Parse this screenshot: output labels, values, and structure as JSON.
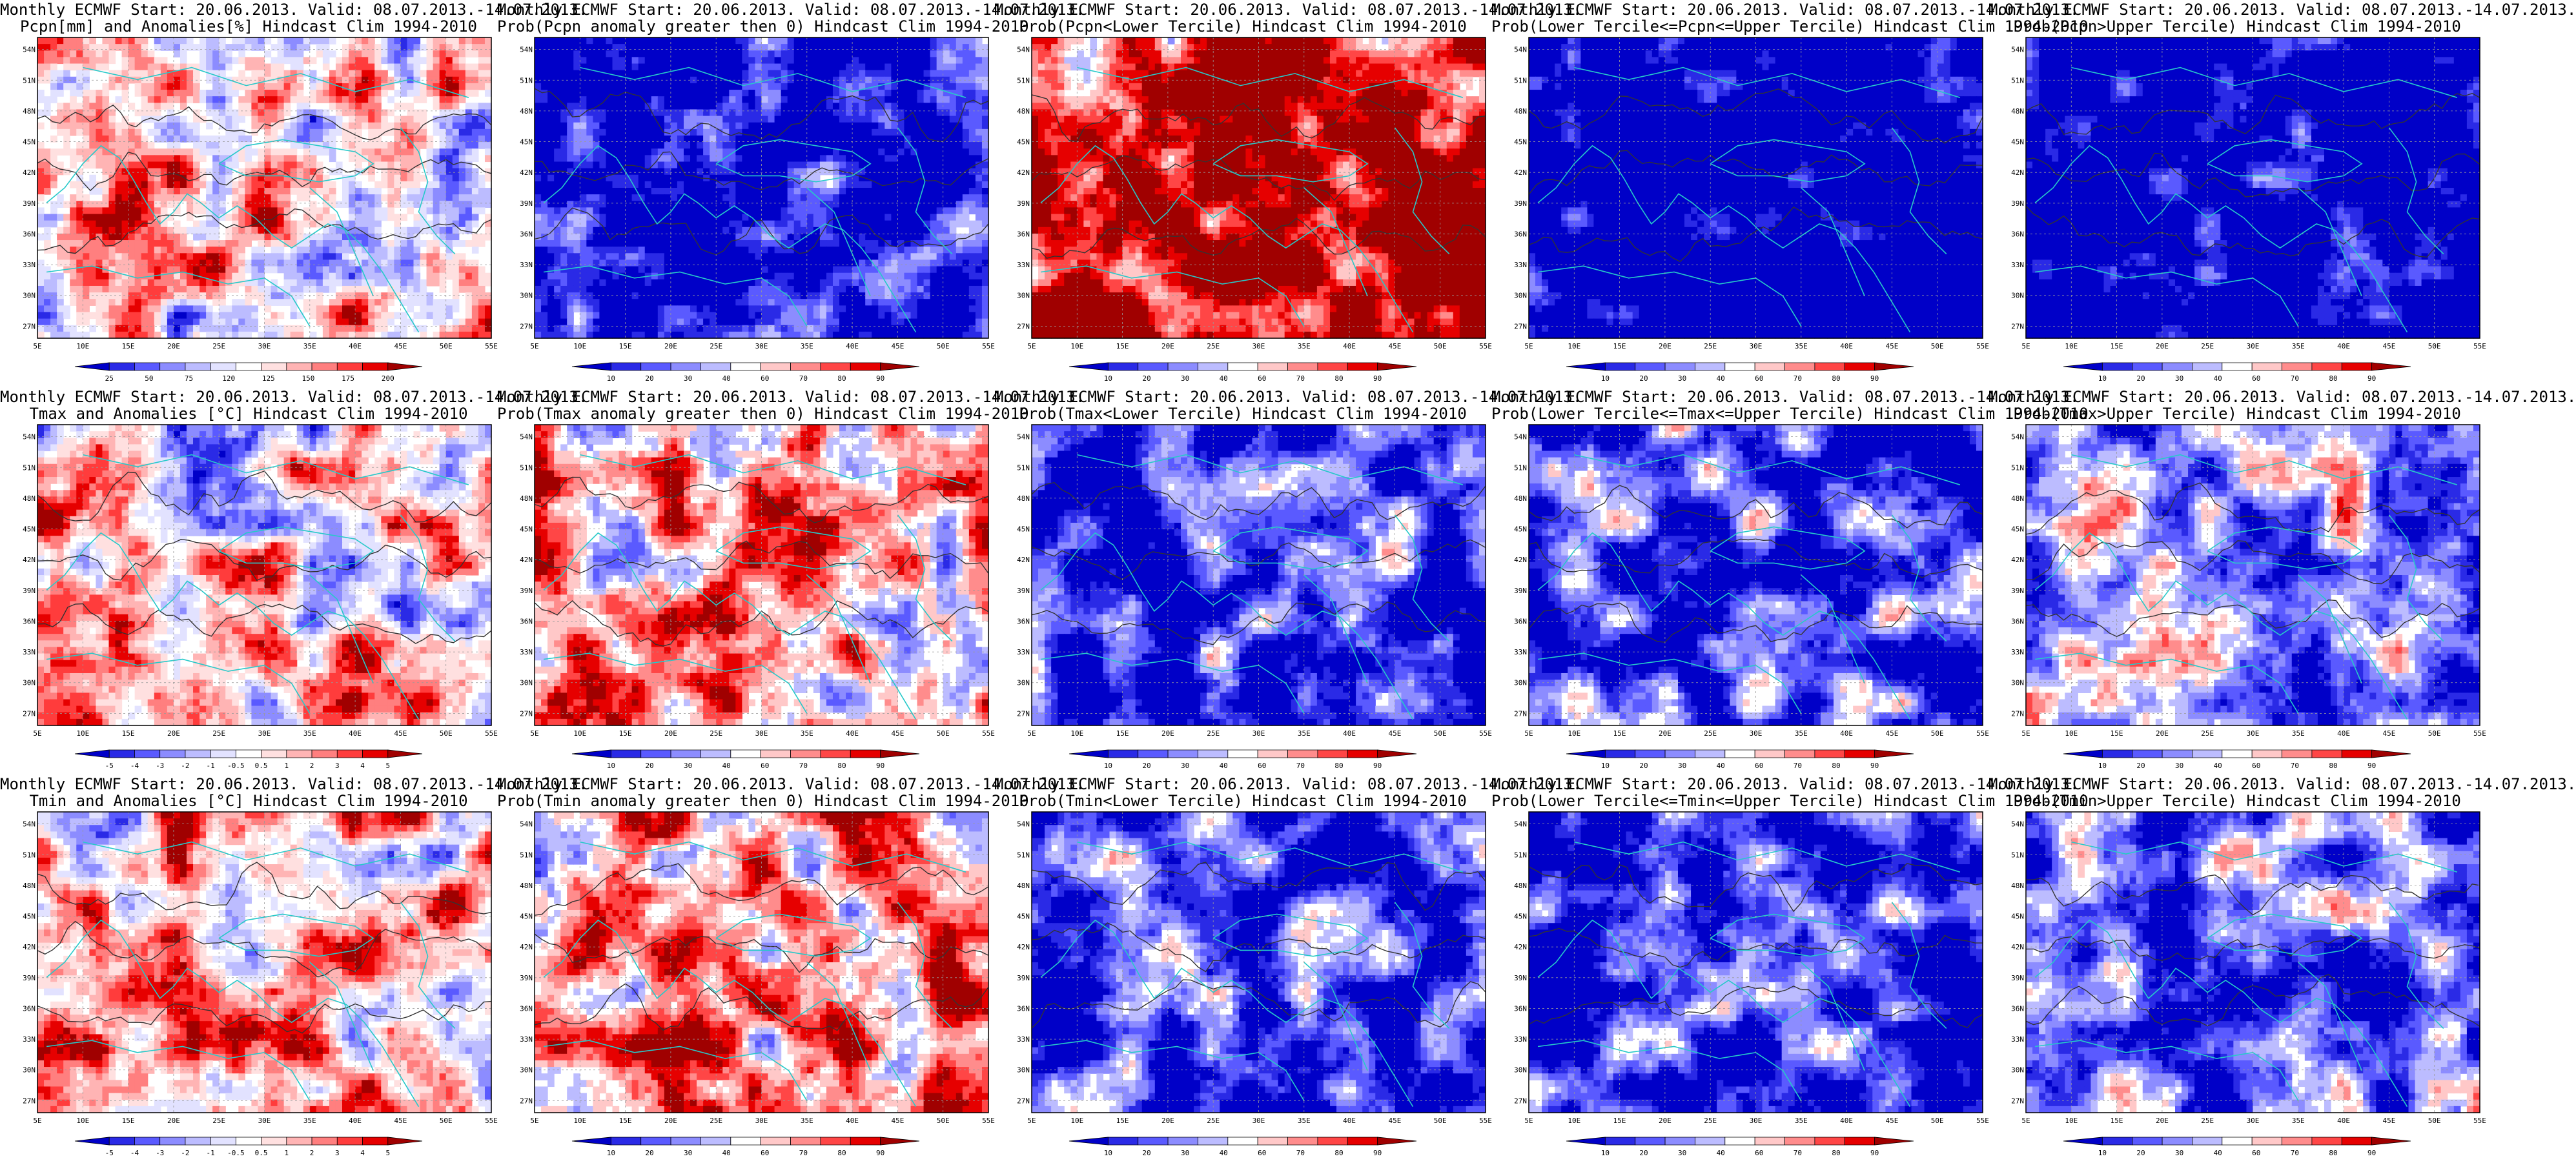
{
  "page": {
    "background": "#ffffff"
  },
  "palette": {
    "anomaly_scale": [
      "#0000c8",
      "#2a2ae6",
      "#5a5aff",
      "#8c8cff",
      "#bcbcff",
      "#e2e2ff",
      "#ffffff",
      "#ffe0e0",
      "#ffb4b4",
      "#ff7f7f",
      "#ff3c3c",
      "#e60000",
      "#a00000"
    ],
    "prob_scale": [
      "#0000c8",
      "#2a2ae6",
      "#5a5aff",
      "#8c8cff",
      "#bcbcff",
      "#ffffff",
      "#ffc8c8",
      "#ff8c8c",
      "#ff4646",
      "#e60000",
      "#a00000"
    ],
    "coast_color": "#27c9c9",
    "contour_color": "#333333"
  },
  "axes": {
    "lat_labels": [
      "54N",
      "51N",
      "48N",
      "45N",
      "42N",
      "39N",
      "36N",
      "33N",
      "30N",
      "27N"
    ],
    "lon_labels": [
      "5E",
      "10E",
      "15E",
      "20E",
      "25E",
      "30E",
      "35E",
      "40E",
      "45E",
      "50E",
      "55E"
    ]
  },
  "colorbars": {
    "pcpn_anom": [
      "25",
      "50",
      "75",
      "120",
      "125",
      "150",
      "175",
      "200"
    ],
    "temp_anom": [
      "-5",
      "-4",
      "-3",
      "-2",
      "-1",
      "-0.5",
      "0.5",
      "1",
      "2",
      "3",
      "4",
      "5"
    ],
    "prob": [
      "10",
      "20",
      "30",
      "40",
      "60",
      "70",
      "80",
      "90"
    ]
  },
  "panels": [
    {
      "line1": "Monthly ECMWF Start: 20.06.2013. Valid: 08.07.2013.-14.07.2013.",
      "line2": "Pcpn[mm] and Anomalies[%] Hindcast Clim 1994-2010",
      "bar": "pcpn_anom",
      "seed": 11,
      "bias": 0.05,
      "scale": "anomaly_scale"
    },
    {
      "line1": "Monthly ECMWF Start: 20.06.2013. Valid: 08.07.2013.-14.07.2013.",
      "line2": "Prob(Pcpn anomaly greater then 0) Hindcast Clim 1994-2010",
      "bar": "prob",
      "seed": 12,
      "bias": -0.35,
      "scale": "prob_scale"
    },
    {
      "line1": "Monthly ECMWF Start: 20.06.2013. Valid: 08.07.2013.-14.07.2013.",
      "line2": "Prob(Pcpn<Lower Tercile) Hindcast Clim 1994-2010",
      "bar": "prob",
      "seed": 13,
      "bias": 0.35,
      "scale": "prob_scale"
    },
    {
      "line1": "Monthly ECMWF Start: 20.06.2013. Valid: 08.07.2013.-14.07.2013.",
      "line2": "Prob(Lower Tercile<=Pcpn<=Upper Tercile) Hindcast Clim 1994-2010",
      "bar": "prob",
      "seed": 14,
      "bias": -0.55,
      "scale": "prob_scale"
    },
    {
      "line1": "Monthly ECMWF Start: 20.06.2013. Valid: 08.07.2013.-14.07.2013.",
      "line2": "Prob(Pcpn>Upper Tercile) Hindcast Clim 1994-2010",
      "bar": "prob",
      "seed": 15,
      "bias": -0.5,
      "scale": "prob_scale"
    },
    {
      "line1": "Monthly ECMWF Start: 20.06.2013. Valid: 08.07.2013.-14.07.2013.",
      "line2": "Tmax and Anomalies [°C] Hindcast Clim 1994-2010",
      "bar": "temp_anom",
      "seed": 21,
      "bias": 0.05,
      "scale": "anomaly_scale"
    },
    {
      "line1": "Monthly ECMWF Start: 20.06.2013. Valid: 08.07.2013.-14.07.2013.",
      "line2": "Prob(Tmax anomaly greater then 0) Hindcast Clim 1994-2010",
      "bar": "prob",
      "seed": 22,
      "bias": 0.1,
      "scale": "prob_scale"
    },
    {
      "line1": "Monthly ECMWF Start: 20.06.2013. Valid: 08.07.2013.-14.07.2013.",
      "line2": "Prob(Tmax<Lower Tercile) Hindcast Clim 1994-2010",
      "bar": "prob",
      "seed": 23,
      "bias": -0.3,
      "scale": "prob_scale"
    },
    {
      "line1": "Monthly ECMWF Start: 20.06.2013. Valid: 08.07.2013.-14.07.2013.",
      "line2": "Prob(Lower Tercile<=Tmax<=Upper Tercile) Hindcast Clim 1994-2010",
      "bar": "prob",
      "seed": 24,
      "bias": -0.25,
      "scale": "prob_scale"
    },
    {
      "line1": "Monthly ECMWF Start: 20.06.2013. Valid: 08.07.2013.-14.07.2013.",
      "line2": "Prob(Tmax>Upper Tercile) Hindcast Clim 1994-2010",
      "bar": "prob",
      "seed": 25,
      "bias": -0.1,
      "scale": "prob_scale"
    },
    {
      "line1": "Monthly ECMWF Start: 20.06.2013. Valid: 08.07.2013.-14.07.2013.",
      "line2": "Tmin and Anomalies [°C] Hindcast Clim 1994-2010",
      "bar": "temp_anom",
      "seed": 31,
      "bias": 0.1,
      "scale": "anomaly_scale"
    },
    {
      "line1": "Monthly ECMWF Start: 20.06.2013. Valid: 08.07.2013.-14.07.2013.",
      "line2": "Prob(Tmin anomaly greater then 0) Hindcast Clim 1994-2010",
      "bar": "prob",
      "seed": 32,
      "bias": 0.15,
      "scale": "prob_scale"
    },
    {
      "line1": "Monthly ECMWF Start: 20.06.2013. Valid: 08.07.2013.-14.07.2013.",
      "line2": "Prob(Tmin<Lower Tercile) Hindcast Clim 1994-2010",
      "bar": "prob",
      "seed": 33,
      "bias": -0.3,
      "scale": "prob_scale"
    },
    {
      "line1": "Monthly ECMWF Start: 20.06.2013. Valid: 08.07.2013.-14.07.2013.",
      "line2": "Prob(Lower Tercile<=Tmin<=Upper Tercile) Hindcast Clim 1994-2010",
      "bar": "prob",
      "seed": 34,
      "bias": -0.25,
      "scale": "prob_scale"
    },
    {
      "line1": "Monthly ECMWF Start: 20.06.2013. Valid: 08.07.2013.-14.07.2013.",
      "line2": "Prob(Tmin>Upper Tercile) Hindcast Clim 1994-2010",
      "bar": "prob",
      "seed": 35,
      "bias": -0.2,
      "scale": "prob_scale"
    }
  ]
}
